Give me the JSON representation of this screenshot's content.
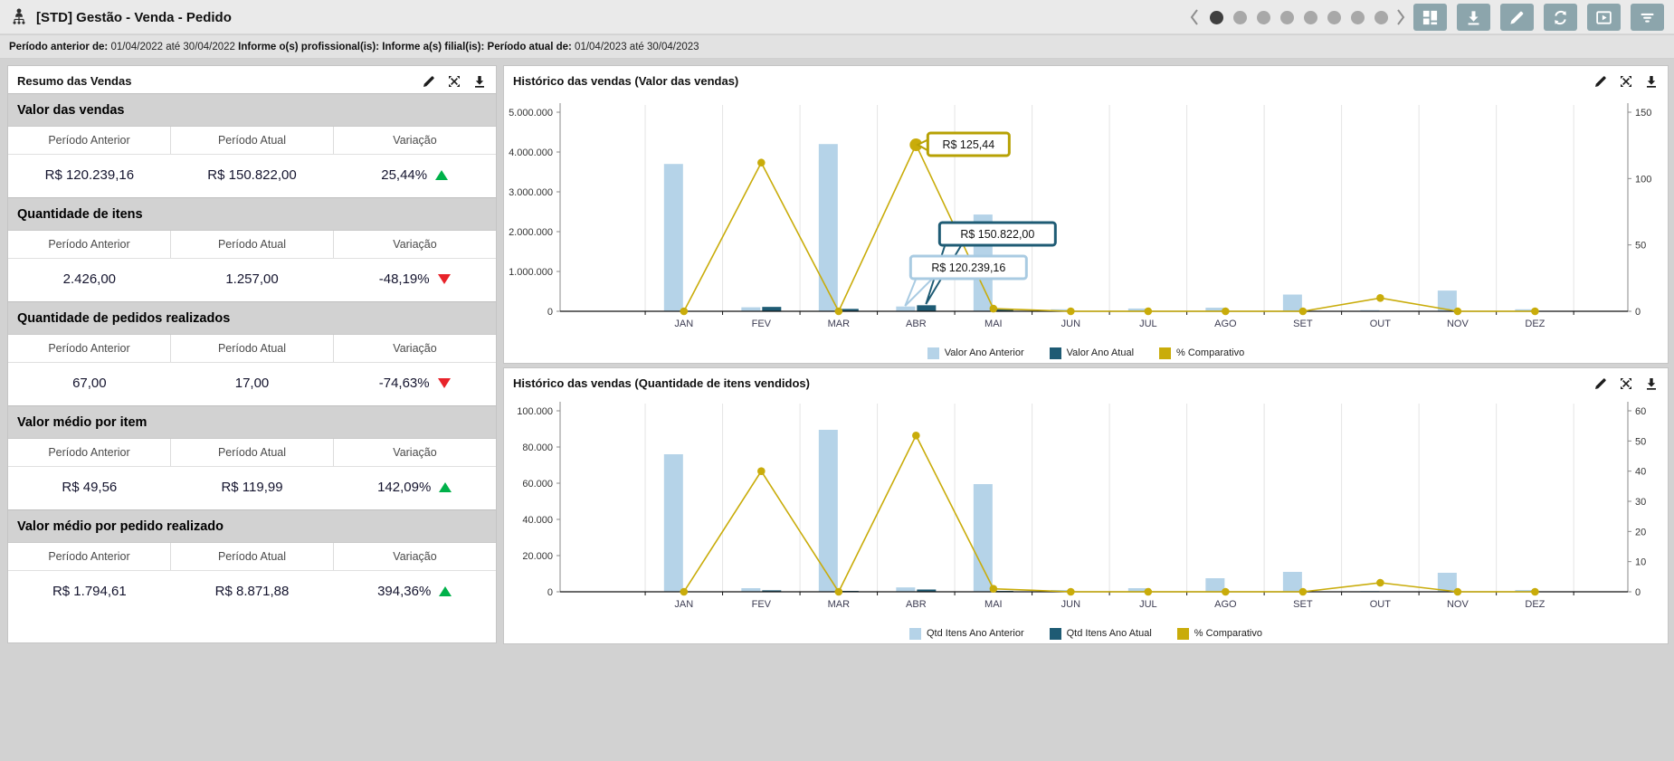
{
  "header": {
    "title": "[STD] Gestão - Venda - Pedido",
    "pagination": {
      "total_dots": 8,
      "active_index": 0
    },
    "toolbar_icons": [
      "layout",
      "download",
      "edit",
      "refresh",
      "present",
      "filter"
    ]
  },
  "filters": [
    {
      "label": "Período anterior de:",
      "value": "01/04/2022 até 30/04/2022"
    },
    {
      "label": "Informe o(s) profissional(is):",
      "value": ""
    },
    {
      "label": "Informe a(s) filial(is):",
      "value": ""
    },
    {
      "label": "Período atual de:",
      "value": "01/04/2023 até 30/04/2023"
    }
  ],
  "panel_actions": [
    "edit",
    "maximize",
    "download"
  ],
  "summary": {
    "title": "Resumo das Vendas",
    "columns": [
      "Período Anterior",
      "Período Atual",
      "Variação"
    ],
    "sections": [
      {
        "title": "Valor das vendas",
        "previous": "R$ 120.239,16",
        "current": "R$ 150.822,00",
        "variation": "25,44%",
        "trend": "up"
      },
      {
        "title": "Quantidade de itens",
        "previous": "2.426,00",
        "current": "1.257,00",
        "variation": "-48,19%",
        "trend": "down"
      },
      {
        "title": "Quantidade de pedidos realizados",
        "previous": "67,00",
        "current": "17,00",
        "variation": "-74,63%",
        "trend": "down"
      },
      {
        "title": "Valor médio por item",
        "previous": "R$ 49,56",
        "current": "R$ 119,99",
        "variation": "142,09%",
        "trend": "up"
      },
      {
        "title": "Valor médio por pedido realizado",
        "previous": "R$ 1.794,61",
        "current": "R$ 8.871,88",
        "variation": "394,36%",
        "trend": "up"
      }
    ]
  },
  "chart_data": [
    {
      "type": "bar+line",
      "title": "Histórico das vendas (Valor das vendas)",
      "categories": [
        "JAN",
        "FEV",
        "MAR",
        "ABR",
        "MAI",
        "JUN",
        "JUL",
        "AGO",
        "SET",
        "OUT",
        "NOV",
        "DEZ"
      ],
      "series": [
        {
          "name": "Valor Ano Anterior",
          "type": "bar",
          "color": "#b5d3e8",
          "values": [
            3700000,
            100000,
            4200000,
            120239.16,
            2430000,
            50000,
            70000,
            90000,
            420000,
            30000,
            520000,
            50000
          ]
        },
        {
          "name": "Valor Ano Atual",
          "type": "bar",
          "color": "#1e5b74",
          "values": [
            0,
            110000,
            60000,
            150822,
            50000,
            0,
            0,
            0,
            0,
            0,
            0,
            0
          ]
        },
        {
          "name": "% Comparativo",
          "type": "line",
          "axis": "right",
          "color": "#c9ac0a",
          "values": [
            0,
            112,
            0,
            125.44,
            2,
            0,
            0,
            0,
            0,
            10,
            0,
            0
          ]
        }
      ],
      "left_axis": {
        "min": 0,
        "max": 5000000,
        "ticks": [
          "0",
          "1.000.000",
          "2.000.000",
          "3.000.000",
          "4.000.000",
          "5.000.000"
        ]
      },
      "right_axis": {
        "min": 0,
        "max": 150,
        "ticks": [
          "0",
          "50",
          "100",
          "150"
        ]
      },
      "tooltips": [
        {
          "text": "R$ 125,44",
          "anchor": "line-point-abr"
        },
        {
          "text": "R$ 150.822,00",
          "anchor": "bar-current-abr"
        },
        {
          "text": "R$ 120.239,16",
          "anchor": "bar-previous-abr"
        }
      ],
      "grid": true,
      "legend_position": "bottom"
    },
    {
      "type": "bar+line",
      "title": "Histórico das vendas (Quantidade de itens vendidos)",
      "categories": [
        "JAN",
        "FEV",
        "MAR",
        "ABR",
        "MAI",
        "JUN",
        "JUL",
        "AGO",
        "SET",
        "OUT",
        "NOV",
        "DEZ"
      ],
      "series": [
        {
          "name": "Qtd Itens Ano Anterior",
          "type": "bar",
          "color": "#b5d3e8",
          "values": [
            76000,
            2000,
            89500,
            2426,
            59500,
            1000,
            2000,
            7500,
            11000,
            500,
            10500,
            1000
          ]
        },
        {
          "name": "Qtd Itens Ano Atual",
          "type": "bar",
          "color": "#1e5b74",
          "values": [
            0,
            800,
            500,
            1257,
            500,
            0,
            0,
            0,
            0,
            0,
            0,
            0
          ]
        },
        {
          "name": "% Comparativo",
          "type": "line",
          "axis": "right",
          "color": "#c9ac0a",
          "values": [
            0,
            40,
            0,
            51.81,
            1,
            0,
            0,
            0,
            0,
            3,
            0,
            0
          ]
        }
      ],
      "left_axis": {
        "min": 0,
        "max": 100000,
        "ticks": [
          "0",
          "20.000",
          "40.000",
          "60.000",
          "80.000",
          "100.000"
        ]
      },
      "right_axis": {
        "min": 0,
        "max": 60,
        "ticks": [
          "0",
          "10",
          "20",
          "30",
          "40",
          "50",
          "60"
        ]
      },
      "tooltips": [],
      "grid": true,
      "legend_position": "bottom"
    }
  ],
  "colors": {
    "bar_previous": "#b5d3e8",
    "bar_current": "#1e5b74",
    "line_comparative": "#c9ac0a",
    "positive": "#00b14a",
    "negative": "#e8232a",
    "toolbar_button": "#8ca5ac",
    "tooltip_border_line": "#b7a104",
    "tooltip_border_current": "#1e5b74",
    "tooltip_border_previous": "#a9cbe2"
  }
}
